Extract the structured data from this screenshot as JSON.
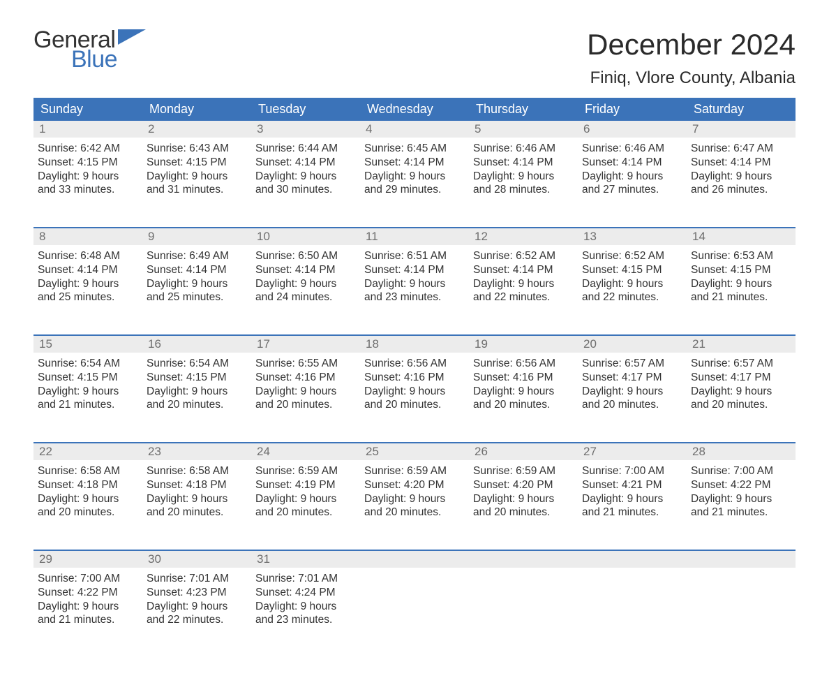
{
  "logo": {
    "word1": "General",
    "word2": "Blue",
    "icon_color": "#3b73b9",
    "word1_color": "#333333",
    "word2_color": "#3b73b9"
  },
  "title": "December 2024",
  "location": "Finiq, Vlore County, Albania",
  "colors": {
    "header_bg": "#3b73b9",
    "header_text": "#ffffff",
    "daynum_bg": "#ececec",
    "daynum_text": "#6e6e6e",
    "body_text": "#333333",
    "rule": "#3b73b9",
    "page_bg": "#ffffff"
  },
  "typography": {
    "title_size_pt": 32,
    "location_size_pt": 18,
    "dayhead_size_pt": 14,
    "cell_size_pt": 12
  },
  "dayheads": [
    "Sunday",
    "Monday",
    "Tuesday",
    "Wednesday",
    "Thursday",
    "Friday",
    "Saturday"
  ],
  "weeks": [
    [
      {
        "n": "1",
        "sunrise": "6:42 AM",
        "sunset": "4:15 PM",
        "daylight": "9 hours and 33 minutes."
      },
      {
        "n": "2",
        "sunrise": "6:43 AM",
        "sunset": "4:15 PM",
        "daylight": "9 hours and 31 minutes."
      },
      {
        "n": "3",
        "sunrise": "6:44 AM",
        "sunset": "4:14 PM",
        "daylight": "9 hours and 30 minutes."
      },
      {
        "n": "4",
        "sunrise": "6:45 AM",
        "sunset": "4:14 PM",
        "daylight": "9 hours and 29 minutes."
      },
      {
        "n": "5",
        "sunrise": "6:46 AM",
        "sunset": "4:14 PM",
        "daylight": "9 hours and 28 minutes."
      },
      {
        "n": "6",
        "sunrise": "6:46 AM",
        "sunset": "4:14 PM",
        "daylight": "9 hours and 27 minutes."
      },
      {
        "n": "7",
        "sunrise": "6:47 AM",
        "sunset": "4:14 PM",
        "daylight": "9 hours and 26 minutes."
      }
    ],
    [
      {
        "n": "8",
        "sunrise": "6:48 AM",
        "sunset": "4:14 PM",
        "daylight": "9 hours and 25 minutes."
      },
      {
        "n": "9",
        "sunrise": "6:49 AM",
        "sunset": "4:14 PM",
        "daylight": "9 hours and 25 minutes."
      },
      {
        "n": "10",
        "sunrise": "6:50 AM",
        "sunset": "4:14 PM",
        "daylight": "9 hours and 24 minutes."
      },
      {
        "n": "11",
        "sunrise": "6:51 AM",
        "sunset": "4:14 PM",
        "daylight": "9 hours and 23 minutes."
      },
      {
        "n": "12",
        "sunrise": "6:52 AM",
        "sunset": "4:14 PM",
        "daylight": "9 hours and 22 minutes."
      },
      {
        "n": "13",
        "sunrise": "6:52 AM",
        "sunset": "4:15 PM",
        "daylight": "9 hours and 22 minutes."
      },
      {
        "n": "14",
        "sunrise": "6:53 AM",
        "sunset": "4:15 PM",
        "daylight": "9 hours and 21 minutes."
      }
    ],
    [
      {
        "n": "15",
        "sunrise": "6:54 AM",
        "sunset": "4:15 PM",
        "daylight": "9 hours and 21 minutes."
      },
      {
        "n": "16",
        "sunrise": "6:54 AM",
        "sunset": "4:15 PM",
        "daylight": "9 hours and 20 minutes."
      },
      {
        "n": "17",
        "sunrise": "6:55 AM",
        "sunset": "4:16 PM",
        "daylight": "9 hours and 20 minutes."
      },
      {
        "n": "18",
        "sunrise": "6:56 AM",
        "sunset": "4:16 PM",
        "daylight": "9 hours and 20 minutes."
      },
      {
        "n": "19",
        "sunrise": "6:56 AM",
        "sunset": "4:16 PM",
        "daylight": "9 hours and 20 minutes."
      },
      {
        "n": "20",
        "sunrise": "6:57 AM",
        "sunset": "4:17 PM",
        "daylight": "9 hours and 20 minutes."
      },
      {
        "n": "21",
        "sunrise": "6:57 AM",
        "sunset": "4:17 PM",
        "daylight": "9 hours and 20 minutes."
      }
    ],
    [
      {
        "n": "22",
        "sunrise": "6:58 AM",
        "sunset": "4:18 PM",
        "daylight": "9 hours and 20 minutes."
      },
      {
        "n": "23",
        "sunrise": "6:58 AM",
        "sunset": "4:18 PM",
        "daylight": "9 hours and 20 minutes."
      },
      {
        "n": "24",
        "sunrise": "6:59 AM",
        "sunset": "4:19 PM",
        "daylight": "9 hours and 20 minutes."
      },
      {
        "n": "25",
        "sunrise": "6:59 AM",
        "sunset": "4:20 PM",
        "daylight": "9 hours and 20 minutes."
      },
      {
        "n": "26",
        "sunrise": "6:59 AM",
        "sunset": "4:20 PM",
        "daylight": "9 hours and 20 minutes."
      },
      {
        "n": "27",
        "sunrise": "7:00 AM",
        "sunset": "4:21 PM",
        "daylight": "9 hours and 21 minutes."
      },
      {
        "n": "28",
        "sunrise": "7:00 AM",
        "sunset": "4:22 PM",
        "daylight": "9 hours and 21 minutes."
      }
    ],
    [
      {
        "n": "29",
        "sunrise": "7:00 AM",
        "sunset": "4:22 PM",
        "daylight": "9 hours and 21 minutes."
      },
      {
        "n": "30",
        "sunrise": "7:01 AM",
        "sunset": "4:23 PM",
        "daylight": "9 hours and 22 minutes."
      },
      {
        "n": "31",
        "sunrise": "7:01 AM",
        "sunset": "4:24 PM",
        "daylight": "9 hours and 23 minutes."
      },
      null,
      null,
      null,
      null
    ]
  ],
  "labels": {
    "sunrise": "Sunrise: ",
    "sunset": "Sunset: ",
    "daylight": "Daylight: "
  }
}
